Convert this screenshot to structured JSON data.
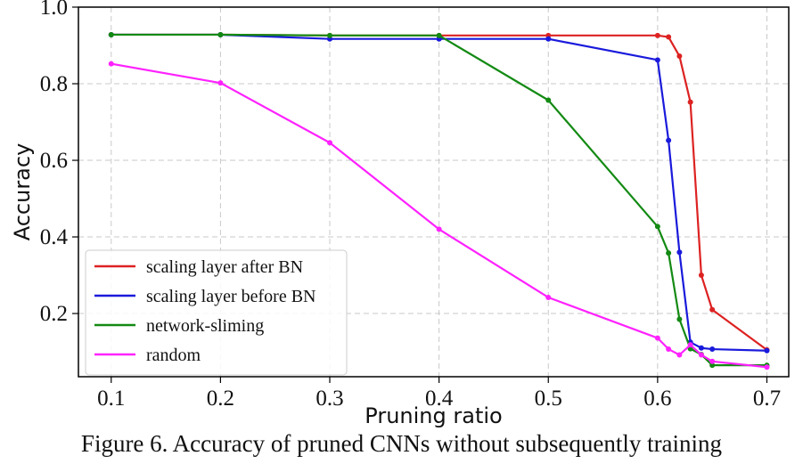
{
  "caption": "Figure 6. Accuracy of pruned CNNs without subsequently training",
  "chart_data": {
    "type": "line",
    "title": "",
    "xlabel": "Pruning ratio",
    "ylabel": "Accuracy",
    "xlim": [
      0.07,
      0.72
    ],
    "ylim": [
      0.035,
      1.0
    ],
    "xticks": [
      0.1,
      0.2,
      0.3,
      0.4,
      0.5,
      0.6,
      0.7
    ],
    "xtick_labels": [
      "0.1",
      "0.2",
      "0.3",
      "0.4",
      "0.5",
      "0.6",
      "0.7"
    ],
    "yticks": [
      0.2,
      0.4,
      0.6,
      0.8,
      1.0
    ],
    "ytick_labels": [
      "0.2",
      "0.4",
      "0.6",
      "0.8",
      "1.0"
    ],
    "grid": true,
    "legend_position": "lower-left",
    "series": [
      {
        "name": "scaling layer after BN",
        "color": "#dd2222",
        "x": [
          0.1,
          0.2,
          0.3,
          0.4,
          0.5,
          0.6,
          0.61,
          0.62,
          0.63,
          0.64,
          0.65,
          0.7
        ],
        "y": [
          0.928,
          0.928,
          0.926,
          0.926,
          0.926,
          0.926,
          0.922,
          0.872,
          0.752,
          0.3,
          0.21,
          0.105
        ]
      },
      {
        "name": "scaling layer before BN",
        "color": "#1a1adc",
        "x": [
          0.1,
          0.2,
          0.3,
          0.4,
          0.5,
          0.6,
          0.61,
          0.62,
          0.63,
          0.64,
          0.65,
          0.7
        ],
        "y": [
          0.928,
          0.928,
          0.917,
          0.917,
          0.917,
          0.862,
          0.652,
          0.36,
          0.125,
          0.11,
          0.107,
          0.103
        ]
      },
      {
        "name": "network-sliming",
        "color": "#138a13",
        "x": [
          0.1,
          0.2,
          0.3,
          0.4,
          0.5,
          0.6,
          0.61,
          0.62,
          0.63,
          0.64,
          0.65,
          0.7
        ],
        "y": [
          0.928,
          0.928,
          0.926,
          0.926,
          0.757,
          0.427,
          0.358,
          0.185,
          0.108,
          0.093,
          0.065,
          0.065
        ]
      },
      {
        "name": "random",
        "color": "#ff22ff",
        "x": [
          0.1,
          0.2,
          0.3,
          0.4,
          0.5,
          0.6,
          0.61,
          0.62,
          0.63,
          0.64,
          0.65,
          0.7
        ],
        "y": [
          0.852,
          0.802,
          0.646,
          0.42,
          0.242,
          0.136,
          0.107,
          0.092,
          0.118,
          0.092,
          0.075,
          0.06
        ]
      }
    ]
  }
}
